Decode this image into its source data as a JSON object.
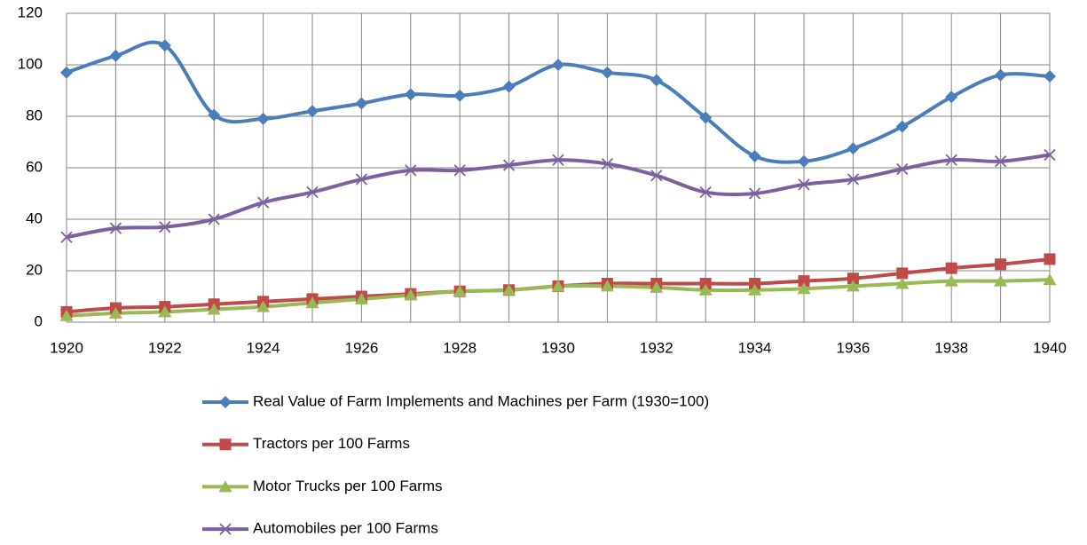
{
  "chart_data": {
    "type": "line",
    "x": [
      1920,
      1921,
      1922,
      1923,
      1924,
      1925,
      1926,
      1927,
      1928,
      1929,
      1930,
      1931,
      1932,
      1933,
      1934,
      1935,
      1936,
      1937,
      1938,
      1939,
      1940
    ],
    "xlim": [
      1920,
      1940
    ],
    "xticks": [
      1920,
      1922,
      1924,
      1926,
      1928,
      1930,
      1932,
      1934,
      1936,
      1938,
      1940
    ],
    "ylim": [
      0,
      120
    ],
    "yticks": [
      0,
      20,
      40,
      60,
      80,
      100,
      120
    ],
    "grid": true,
    "smooth": true,
    "legend": "bottom",
    "series": [
      {
        "name": "Real Value of Farm Implements and Machines per Farm (1930=100)",
        "color": "#4a7ebb",
        "marker": "diamond",
        "values": [
          97,
          103.5,
          107.5,
          80.5,
          79,
          82,
          85,
          88.5,
          88,
          91.5,
          100,
          97,
          94,
          79.5,
          64.5,
          62.5,
          67.5,
          76,
          87.5,
          96,
          95.5
        ]
      },
      {
        "name": "Tractors per 100 Farms",
        "color": "#be4b48",
        "marker": "square",
        "values": [
          4,
          5.5,
          6,
          7,
          8,
          9,
          10,
          11,
          12,
          12.5,
          14,
          15,
          15,
          15,
          15,
          16,
          17,
          19,
          21,
          22.5,
          24.5
        ]
      },
      {
        "name": "Motor Trucks per 100 Farms",
        "color": "#98b954",
        "marker": "triangle",
        "values": [
          2.5,
          3.5,
          4,
          5,
          6,
          7.5,
          9,
          10.5,
          12,
          12.5,
          14,
          14,
          13.5,
          12.5,
          12.5,
          13,
          14,
          15,
          16,
          16,
          16.5
        ]
      },
      {
        "name": "Automobiles per 100 Farms",
        "color": "#7d60a0",
        "marker": "x",
        "values": [
          33,
          36.5,
          37,
          40,
          46.5,
          50.5,
          55.5,
          59,
          59,
          61,
          63,
          61.5,
          57,
          50.5,
          50,
          53.5,
          55.5,
          59.5,
          63,
          62.5,
          65
        ]
      }
    ]
  }
}
